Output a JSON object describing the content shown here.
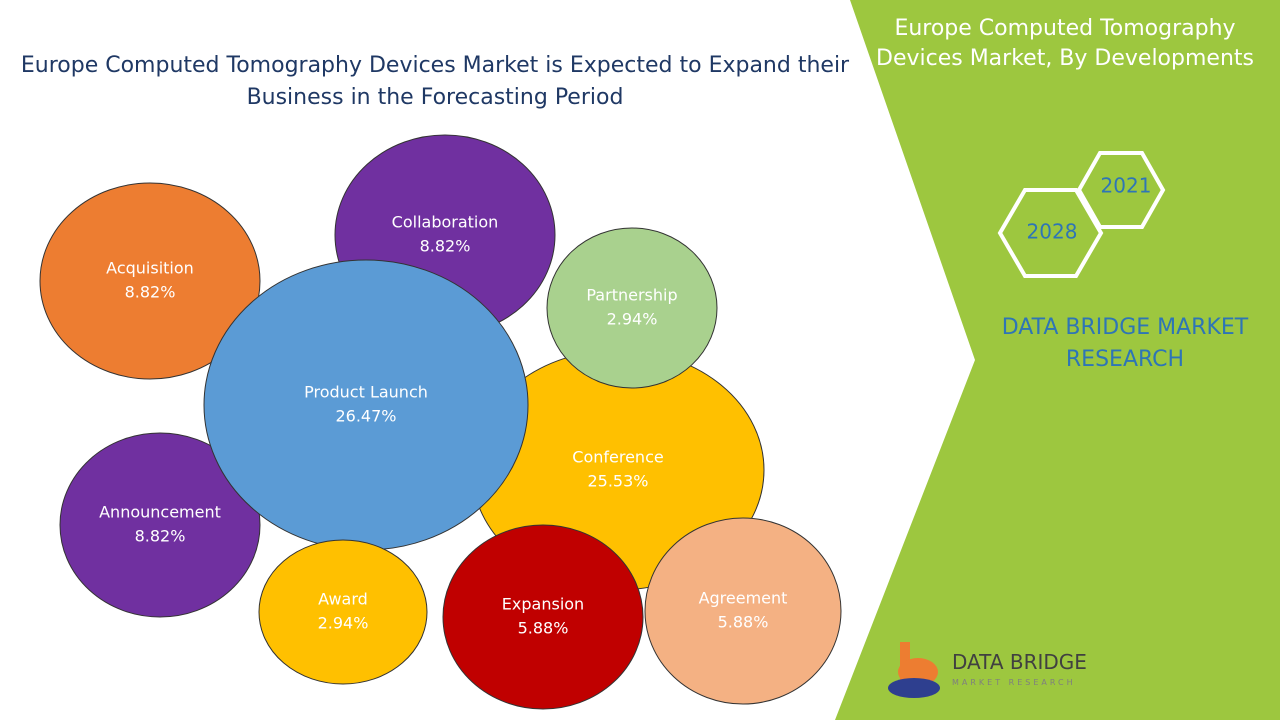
{
  "chart_data": {
    "type": "bubble",
    "title": "Europe Computed Tomography Devices Market is Expected to Expand their Business in the Forecasting Period",
    "categories": [
      "Acquisition",
      "Collaboration",
      "Announcement",
      "Conference",
      "Partnership",
      "Product Launch",
      "Award",
      "Expansion",
      "Agreement"
    ],
    "values": [
      8.82,
      8.82,
      8.82,
      25.53,
      2.94,
      26.47,
      2.94,
      5.88,
      5.88
    ],
    "value_labels": [
      "8.82%",
      "8.82%",
      "8.82%",
      "25.53%",
      "2.94%",
      "26.47%",
      "2.94%",
      "5.88%",
      "5.88%"
    ],
    "colors": [
      "#ed7d31",
      "#7030a0",
      "#7030a0",
      "#ffc000",
      "#a9d18e",
      "#5b9bd5",
      "#ffc000",
      "#c00000",
      "#f4b183"
    ]
  },
  "side_panel": {
    "title": "Europe Computed Tomography Devices Market, By Developments",
    "years": [
      "2021",
      "2028"
    ],
    "brand": "DATA BRIDGE MARKET RESEARCH",
    "logo_name": "DATA BRIDGE",
    "logo_sub": "MARKET RESEARCH"
  }
}
